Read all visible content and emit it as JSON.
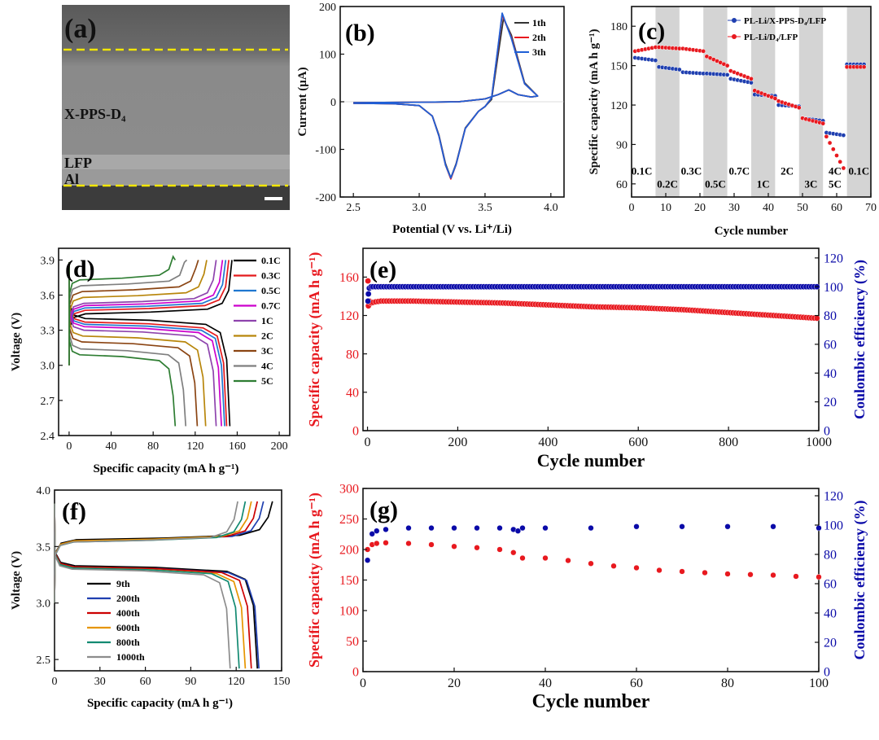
{
  "colors": {
    "black": "#1a1a1a",
    "red": "#e8191f",
    "blue": "#1f5fd6",
    "navy": "#0a0aa8",
    "grid_grey": "#d4d4d4",
    "yellow": "#f2e600",
    "rate": [
      "#000000",
      "#e41a1c",
      "#1f77d0",
      "#cc00cc",
      "#8e44ad",
      "#b8860b",
      "#8b4513",
      "#7f7f7f",
      "#2e7d32"
    ],
    "cycles": [
      "#000000",
      "#1f3fb0",
      "#cc0000",
      "#e69500",
      "#138a72",
      "#8c8c8c"
    ]
  },
  "panel_a": {
    "label": "(a)",
    "layers": [
      "X-PPS-D₄",
      "LFP",
      "Al"
    ]
  },
  "chart_data": [
    {
      "id": "b",
      "panel_label": "(b)",
      "type": "line",
      "xlabel": "Potential (V vs. Li⁺/Li)",
      "ylabel": "Current (μA)",
      "xlim": [
        2.4,
        4.1
      ],
      "ylim": [
        -200,
        200
      ],
      "xticks": [
        "2.5",
        "3.0",
        "3.5",
        "4.0"
      ],
      "yticks": [
        "-200",
        "-100",
        "0",
        "100",
        "200"
      ],
      "legend": "top-right",
      "series": [
        {
          "name": "1th",
          "color": "#333333",
          "x": [
            2.5,
            2.8,
            3.0,
            3.1,
            3.15,
            3.2,
            3.24,
            3.28,
            3.35,
            3.45,
            3.5,
            3.55,
            3.6,
            3.64,
            3.7,
            3.8,
            3.9,
            3.85,
            3.75,
            3.7,
            3.68,
            3.6,
            3.5,
            3.3,
            3.0,
            2.5
          ],
          "y": [
            -3,
            -4,
            -8,
            -30,
            -70,
            -130,
            -160,
            -130,
            -55,
            -20,
            -10,
            5,
            100,
            175,
            140,
            40,
            12,
            10,
            15,
            22,
            25,
            15,
            6,
            0,
            -1,
            -2
          ]
        },
        {
          "name": "2th",
          "color": "#e8191f",
          "x": [
            2.5,
            2.8,
            3.0,
            3.1,
            3.15,
            3.2,
            3.24,
            3.28,
            3.35,
            3.45,
            3.5,
            3.55,
            3.6,
            3.63,
            3.7,
            3.8,
            3.9,
            3.85,
            3.75,
            3.7,
            3.68,
            3.6,
            3.5,
            3.3,
            3.0,
            2.5
          ],
          "y": [
            -3,
            -4,
            -8,
            -30,
            -72,
            -133,
            -162,
            -132,
            -56,
            -20,
            -10,
            8,
            115,
            183,
            135,
            38,
            12,
            10,
            15,
            22,
            25,
            15,
            6,
            0,
            -1,
            -2
          ]
        },
        {
          "name": "3th",
          "color": "#1f5fd6",
          "x": [
            2.5,
            2.8,
            3.0,
            3.1,
            3.15,
            3.2,
            3.24,
            3.28,
            3.35,
            3.45,
            3.5,
            3.55,
            3.6,
            3.63,
            3.7,
            3.8,
            3.9,
            3.85,
            3.75,
            3.7,
            3.68,
            3.6,
            3.5,
            3.3,
            3.0,
            2.5
          ],
          "y": [
            -3,
            -4,
            -8,
            -30,
            -72,
            -133,
            -160,
            -132,
            -56,
            -20,
            -10,
            8,
            118,
            186,
            133,
            38,
            12,
            10,
            15,
            22,
            25,
            15,
            6,
            0,
            -1,
            -2
          ]
        }
      ]
    },
    {
      "id": "c",
      "panel_label": "(c)",
      "type": "scatter",
      "xlabel": "Cycle number",
      "ylabel": "Specific capacity (mA h g⁻¹)",
      "xlim": [
        0,
        70
      ],
      "ylim": [
        50,
        195
      ],
      "xticks": [
        "0",
        "10",
        "20",
        "30",
        "40",
        "50",
        "60",
        "70"
      ],
      "yticks": [
        "60",
        "90",
        "120",
        "150",
        "180"
      ],
      "shaded_bands": [
        [
          7,
          14
        ],
        [
          21,
          28
        ],
        [
          35,
          42
        ],
        [
          49,
          56
        ],
        [
          63,
          70
        ]
      ],
      "rate_labels": [
        {
          "text": "0.1C",
          "x": 3,
          "y": 67
        },
        {
          "text": "0.2C",
          "x": 10.5,
          "y": 57
        },
        {
          "text": "0.3C",
          "x": 17.5,
          "y": 67
        },
        {
          "text": "0.5C",
          "x": 24.5,
          "y": 57
        },
        {
          "text": "0.7C",
          "x": 31.5,
          "y": 67
        },
        {
          "text": "1C",
          "x": 38.5,
          "y": 57
        },
        {
          "text": "2C",
          "x": 45.5,
          "y": 67
        },
        {
          "text": "3C",
          "x": 52.5,
          "y": 57
        },
        {
          "text": "4C",
          "x": 59.5,
          "y": 67
        },
        {
          "text": "5C",
          "x": 59.5,
          "y": 57
        },
        {
          "text": "0.1C",
          "x": 66.5,
          "y": 67
        }
      ],
      "legend": "top-right",
      "series": [
        {
          "name": "PL-Li/X-PPS-D₄/LFP",
          "color": "#1f3fb0",
          "segments": [
            [
              1,
              7,
              156,
              154
            ],
            [
              8,
              14,
              149,
              147
            ],
            [
              15,
              21,
              145,
              144
            ],
            [
              22,
              28,
              144,
              143
            ],
            [
              29,
              35,
              140,
              137
            ],
            [
              36,
              42,
              128,
              127
            ],
            [
              43,
              49,
              120,
              119
            ],
            [
              50,
              56,
              110,
              108
            ],
            [
              57,
              62,
              99,
              97
            ],
            [
              63,
              68,
              151,
              151
            ]
          ]
        },
        {
          "name": "PL-Li/D₄/LFP",
          "color": "#e8191f",
          "segments": [
            [
              1,
              7,
              161,
              164
            ],
            [
              8,
              14,
              164,
              163
            ],
            [
              15,
              21,
              163,
              161
            ],
            [
              22,
              28,
              157,
              150
            ],
            [
              29,
              35,
              146,
              140
            ],
            [
              36,
              42,
              131,
              125
            ],
            [
              43,
              49,
              123,
              118
            ],
            [
              50,
              56,
              110,
              106
            ],
            [
              57,
              62,
              96,
              72
            ],
            [
              63,
              68,
              149,
              149
            ]
          ]
        }
      ]
    },
    {
      "id": "d",
      "panel_label": "(d)",
      "type": "line",
      "xlabel": "Specific capacity (mA h g⁻¹)",
      "ylabel": "Voltage (V)",
      "xlim": [
        -10,
        210
      ],
      "ylim": [
        2.4,
        4.0
      ],
      "xticks": [
        "0",
        "40",
        "80",
        "120",
        "160",
        "200"
      ],
      "yticks": [
        "2.4",
        "2.7",
        "3.0",
        "3.3",
        "3.6",
        "3.9"
      ],
      "legend": "right-outside",
      "curves": [
        {
          "name": "0.1C",
          "cap_charge": 155,
          "cap_discharge": 153,
          "v_charge": 3.44,
          "v_discharge": 3.4
        },
        {
          "name": "0.3C",
          "cap_charge": 152,
          "cap_discharge": 150,
          "v_charge": 3.47,
          "v_discharge": 3.37
        },
        {
          "name": "0.5C",
          "cap_charge": 149,
          "cap_discharge": 148,
          "v_charge": 3.49,
          "v_discharge": 3.35
        },
        {
          "name": "0.7C",
          "cap_charge": 146,
          "cap_discharge": 145,
          "v_charge": 3.51,
          "v_discharge": 3.33
        },
        {
          "name": "1C",
          "cap_charge": 140,
          "cap_discharge": 140,
          "v_charge": 3.53,
          "v_discharge": 3.3
        },
        {
          "name": "2C",
          "cap_charge": 131,
          "cap_discharge": 130,
          "v_charge": 3.58,
          "v_discharge": 3.25
        },
        {
          "name": "3C",
          "cap_charge": 123,
          "cap_discharge": 122,
          "v_charge": 3.63,
          "v_discharge": 3.2
        },
        {
          "name": "4C",
          "cap_charge": 112,
          "cap_discharge": 111,
          "v_charge": 3.68,
          "v_discharge": 3.14
        },
        {
          "name": "5C",
          "cap_charge": 101,
          "cap_discharge": 101,
          "v_charge": 3.73,
          "v_discharge": 3.09
        }
      ]
    },
    {
      "id": "e",
      "panel_label": "(e)",
      "type": "scatter",
      "xlabel": "Cycle number",
      "ylabel": "Specific capacity (mA h g⁻¹)",
      "y2label": "Coulombic efficiency (%)",
      "xlim": [
        -10,
        1000
      ],
      "ylim": [
        0,
        190
      ],
      "y2lim": [
        0,
        126.7
      ],
      "xticks": [
        "0",
        "200",
        "400",
        "600",
        "800",
        "1000"
      ],
      "yticks": [
        "0",
        "40",
        "80",
        "120",
        "160"
      ],
      "y2ticks": [
        "0",
        "20",
        "40",
        "60",
        "80",
        "100",
        "120"
      ],
      "series": [
        {
          "name": "Specific capacity",
          "axis": "left",
          "color": "#e8191f",
          "x": [
            1,
            2,
            4,
            8,
            15,
            30,
            60,
            100,
            200,
            300,
            400,
            500,
            600,
            700,
            800,
            900,
            1000
          ],
          "y": [
            156,
            130,
            135,
            133,
            134,
            135,
            135,
            135,
            134,
            133,
            131,
            129,
            128,
            126,
            123,
            120,
            117
          ]
        },
        {
          "name": "Coulombic efficiency",
          "axis": "right",
          "color": "#0a0aa8",
          "x": [
            1,
            2,
            4,
            8,
            15,
            30,
            60,
            100,
            200,
            300,
            400,
            500,
            600,
            700,
            800,
            900,
            1000
          ],
          "y": [
            90,
            95,
            99,
            100,
            100,
            100,
            100,
            100,
            100,
            100,
            100,
            100,
            100,
            100,
            100,
            100,
            100
          ]
        }
      ]
    },
    {
      "id": "f",
      "panel_label": "(f)",
      "type": "line",
      "xlabel": "Specific capacity (mA h g⁻¹)",
      "ylabel": "Voltage (V)",
      "xlim": [
        0,
        150
      ],
      "ylim": [
        2.4,
        4.0
      ],
      "xticks": [
        "0",
        "30",
        "60",
        "90",
        "120",
        "150"
      ],
      "yticks": [
        "2.5",
        "3.0",
        "3.5",
        "4.0"
      ],
      "legend": "bottom-left",
      "curves": [
        {
          "name": "9th",
          "cap_charge": 144,
          "cap_discharge": 134,
          "v_charge": 3.56,
          "v_discharge": 3.33
        },
        {
          "name": "200th",
          "cap_charge": 138,
          "cap_discharge": 135,
          "v_charge": 3.55,
          "v_discharge": 3.32
        },
        {
          "name": "400th",
          "cap_charge": 134,
          "cap_discharge": 130,
          "v_charge": 3.55,
          "v_discharge": 3.32
        },
        {
          "name": "600th",
          "cap_charge": 130,
          "cap_discharge": 126,
          "v_charge": 3.55,
          "v_discharge": 3.31
        },
        {
          "name": "800th",
          "cap_charge": 126,
          "cap_discharge": 122,
          "v_charge": 3.54,
          "v_discharge": 3.31
        },
        {
          "name": "1000th",
          "cap_charge": 121,
          "cap_discharge": 116,
          "v_charge": 3.54,
          "v_discharge": 3.3
        }
      ]
    },
    {
      "id": "g",
      "panel_label": "(g)",
      "type": "scatter",
      "xlabel": "Cycle number",
      "ylabel": "Specific capacity (mA h g⁻¹)",
      "y2label": "Coulombic efficiency (%)",
      "xlim": [
        0,
        100
      ],
      "ylim": [
        0,
        300
      ],
      "y2lim": [
        0,
        125
      ],
      "xticks": [
        "0",
        "20",
        "40",
        "60",
        "80",
        "100"
      ],
      "yticks": [
        "0",
        "50",
        "100",
        "150",
        "200",
        "250",
        "300"
      ],
      "y2ticks": [
        "0",
        "20",
        "40",
        "60",
        "80",
        "100",
        "120"
      ],
      "series": [
        {
          "name": "Specific capacity",
          "axis": "left",
          "color": "#e8191f",
          "x": [
            1,
            2,
            3,
            5,
            10,
            15,
            20,
            25,
            30,
            33,
            35,
            40,
            45,
            50,
            55,
            60,
            65,
            70,
            75,
            80,
            85,
            90,
            95,
            100
          ],
          "y": [
            200,
            208,
            210,
            211,
            210,
            208,
            205,
            203,
            200,
            195,
            186,
            186,
            182,
            177,
            173,
            170,
            166,
            164,
            162,
            160,
            159,
            158,
            156,
            155
          ]
        },
        {
          "name": "Coulombic efficiency",
          "axis": "right",
          "color": "#0a0aa8",
          "x": [
            1,
            2,
            3,
            5,
            10,
            15,
            20,
            25,
            30,
            33,
            34,
            35,
            40,
            50,
            60,
            70,
            80,
            90,
            100
          ],
          "y": [
            76,
            94,
            96,
            97,
            98,
            98,
            98,
            98,
            98,
            97,
            96,
            98,
            98,
            98,
            99,
            99,
            99,
            99,
            98
          ]
        }
      ]
    }
  ]
}
